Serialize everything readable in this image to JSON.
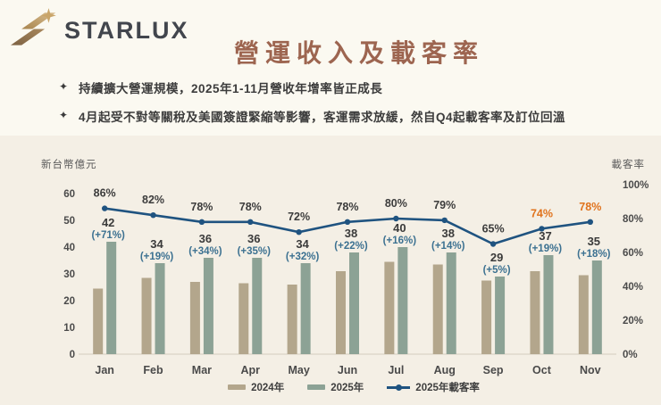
{
  "header": {
    "logo_text": "STARLUX",
    "title": "營運收入及載客率",
    "bullets": [
      {
        "marker": "✦",
        "text": "持續擴大營運規模，2025年1-11月營收年增率皆正成長"
      },
      {
        "marker": "✦",
        "text": "4月起受不對等關稅及美國簽證緊縮等影響，客運需求放緩，然自Q4起載客率及訂位回溫"
      }
    ]
  },
  "chart_data": {
    "type": "bar",
    "title": "營運收入及載客率",
    "categories": [
      "Jan",
      "Feb",
      "Mar",
      "Apr",
      "May",
      "Jun",
      "Jul",
      "Aug",
      "Sep",
      "Oct",
      "Nov"
    ],
    "left_axis": {
      "label": "新台幣億元",
      "min": 0,
      "max": 60,
      "step": 10
    },
    "right_axis": {
      "label": "載客率",
      "min": 0,
      "max": 100,
      "step": 20,
      "suffix": "%"
    },
    "grid": false,
    "legend_position": "bottom",
    "series": [
      {
        "name": "2024年",
        "type": "bar",
        "color": "#b3a68c",
        "values_estimated": true,
        "values": [
          24.5,
          28.5,
          27,
          26.5,
          26,
          31,
          34.5,
          33.5,
          27.5,
          31,
          29.5
        ]
      },
      {
        "name": "2025年",
        "type": "bar",
        "color": "#8ca295",
        "values": [
          42,
          34,
          36,
          36,
          34,
          38,
          40,
          38,
          29,
          37,
          35
        ],
        "growth_labels": [
          "(+71%)",
          "(+19%)",
          "(+34%)",
          "(+35%)",
          "(+32%)",
          "(+22%)",
          "(+16%)",
          "(+14%)",
          "(+5%)",
          "(+19%)",
          "(+18%)"
        ]
      },
      {
        "name": "2025年載客率",
        "type": "line",
        "color": "#1f5380",
        "values": [
          86,
          82,
          78,
          78,
          72,
          78,
          80,
          79,
          65,
          74,
          78
        ],
        "labels": [
          "86%",
          "82%",
          "78%",
          "78%",
          "72%",
          "78%",
          "80%",
          "79%",
          "65%",
          "74%",
          "78%"
        ],
        "label_colors": [
          "#3c3c3c",
          "#3c3c3c",
          "#3c3c3c",
          "#3c3c3c",
          "#3c3c3c",
          "#3c3c3c",
          "#3c3c3c",
          "#3c3c3c",
          "#3c3c3c",
          "#e0731d",
          "#e0731d"
        ]
      }
    ]
  },
  "colors": {
    "page_bg": "#fbf9f1",
    "panel_bg": "#f4efe5",
    "title": "#9d6550",
    "text_dark": "#3c3c3c",
    "bar_2024": "#b3a68c",
    "bar_2025": "#8ca295",
    "line": "#1f5380",
    "growth_label": "#3c7191",
    "highlight": "#e0731d",
    "axis_text": "#4a4a4a",
    "baseline": "#d9d3c6",
    "logo_gold_light": "#d9bd8e",
    "logo_gold_dark": "#8f7350"
  }
}
